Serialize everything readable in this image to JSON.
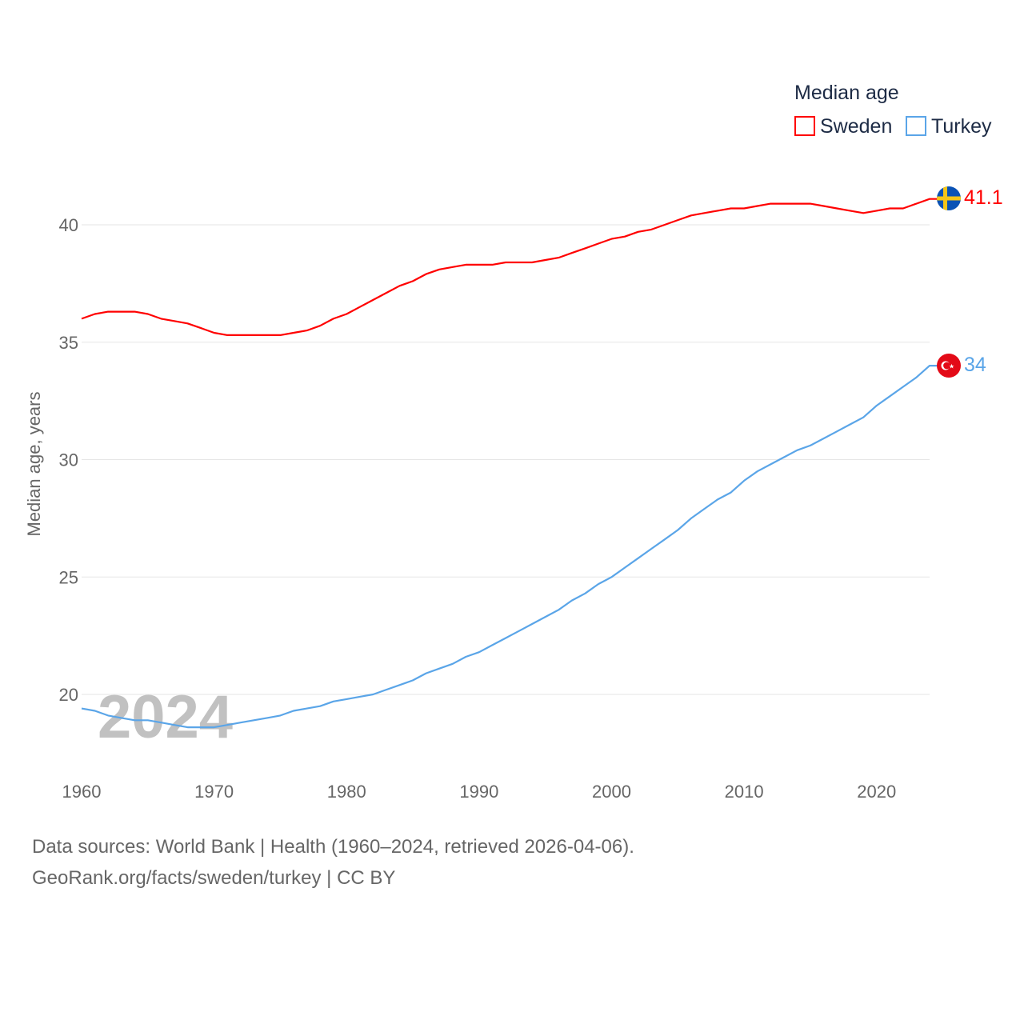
{
  "chart_data": {
    "type": "line",
    "title": "",
    "xlabel": "",
    "ylabel": "Median age, years",
    "xlim": [
      1960,
      2024
    ],
    "ylim": [
      17.5,
      43
    ],
    "x_ticks": [
      "1960",
      "1970",
      "1980",
      "1990",
      "2000",
      "2010",
      "2020"
    ],
    "y_ticks": [
      "20",
      "25",
      "30",
      "35",
      "40"
    ],
    "grid": true,
    "legend_title": "Median age",
    "legend_placement": "top-right",
    "year_watermark": "2024",
    "x": [
      1960,
      1961,
      1962,
      1963,
      1964,
      1965,
      1966,
      1967,
      1968,
      1969,
      1970,
      1971,
      1972,
      1973,
      1974,
      1975,
      1976,
      1977,
      1978,
      1979,
      1980,
      1981,
      1982,
      1983,
      1984,
      1985,
      1986,
      1987,
      1988,
      1989,
      1990,
      1991,
      1992,
      1993,
      1994,
      1995,
      1996,
      1997,
      1998,
      1999,
      2000,
      2001,
      2002,
      2003,
      2004,
      2005,
      2006,
      2007,
      2008,
      2009,
      2010,
      2011,
      2012,
      2013,
      2014,
      2015,
      2016,
      2017,
      2018,
      2019,
      2020,
      2021,
      2022,
      2023,
      2024
    ],
    "series": [
      {
        "name": "Sweden",
        "color": "#ff0000",
        "end_label": "41.1",
        "values": [
          36.0,
          36.2,
          36.3,
          36.3,
          36.3,
          36.2,
          36.0,
          35.9,
          35.8,
          35.6,
          35.4,
          35.3,
          35.3,
          35.3,
          35.3,
          35.3,
          35.4,
          35.5,
          35.7,
          36.0,
          36.2,
          36.5,
          36.8,
          37.1,
          37.4,
          37.6,
          37.9,
          38.1,
          38.2,
          38.3,
          38.3,
          38.3,
          38.4,
          38.4,
          38.4,
          38.5,
          38.6,
          38.8,
          39.0,
          39.2,
          39.4,
          39.5,
          39.7,
          39.8,
          40.0,
          40.2,
          40.4,
          40.5,
          40.6,
          40.7,
          40.7,
          40.8,
          40.9,
          40.9,
          40.9,
          40.9,
          40.8,
          40.7,
          40.6,
          40.5,
          40.6,
          40.7,
          40.7,
          40.9,
          41.1
        ]
      },
      {
        "name": "Turkey",
        "color": "#5aa5e8",
        "end_label": "34",
        "values": [
          19.4,
          19.3,
          19.1,
          19.0,
          18.9,
          18.9,
          18.8,
          18.7,
          18.6,
          18.6,
          18.6,
          18.7,
          18.8,
          18.9,
          19.0,
          19.1,
          19.3,
          19.4,
          19.5,
          19.7,
          19.8,
          19.9,
          20.0,
          20.2,
          20.4,
          20.6,
          20.9,
          21.1,
          21.3,
          21.6,
          21.8,
          22.1,
          22.4,
          22.7,
          23.0,
          23.3,
          23.6,
          24.0,
          24.3,
          24.7,
          25.0,
          25.4,
          25.8,
          26.2,
          26.6,
          27.0,
          27.5,
          27.9,
          28.3,
          28.6,
          29.1,
          29.5,
          29.8,
          30.1,
          30.4,
          30.6,
          30.9,
          31.2,
          31.5,
          31.8,
          32.3,
          32.7,
          33.1,
          33.5,
          34.0
        ]
      }
    ]
  },
  "footer": {
    "sources": "Data sources: World Bank | Health (1960–2024, retrieved 2026-04-06).",
    "credit": "GeoRank.org/facts/sweden/turkey | CC BY"
  }
}
